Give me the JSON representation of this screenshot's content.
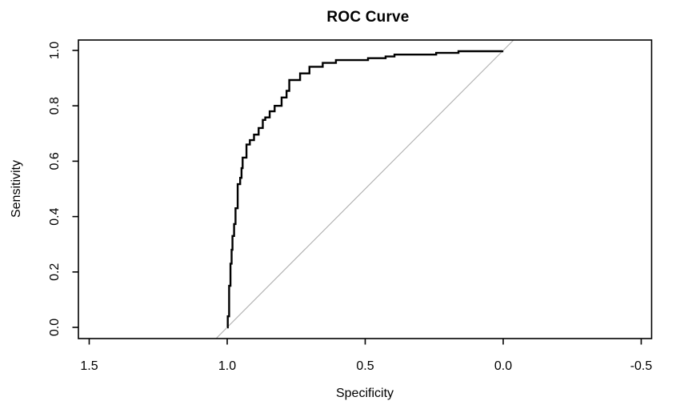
{
  "figure": {
    "background_color": "#ffffff",
    "text_color": "#000000"
  },
  "chart_data": {
    "type": "line",
    "subtype": "roc-step-curve",
    "title": "ROC Curve",
    "xlabel": "Specificity",
    "ylabel": "Sensitivity",
    "x_axis_reversed": true,
    "xlim": [
      1.5,
      -0.5
    ],
    "ylim": [
      0.0,
      1.0
    ],
    "grid": false,
    "legend": "none",
    "x_ticks": [
      {
        "value": 1.5,
        "label": "1.5"
      },
      {
        "value": 1.0,
        "label": "1.0"
      },
      {
        "value": 0.5,
        "label": "0.5"
      },
      {
        "value": 0.0,
        "label": "0.0"
      },
      {
        "value": -0.5,
        "label": "-0.5"
      }
    ],
    "y_ticks": [
      {
        "value": 0.0,
        "label": "0.0"
      },
      {
        "value": 0.2,
        "label": "0.2"
      },
      {
        "value": 0.4,
        "label": "0.4"
      },
      {
        "value": 0.6,
        "label": "0.6"
      },
      {
        "value": 0.8,
        "label": "0.8"
      },
      {
        "value": 1.0,
        "label": "1.0"
      }
    ],
    "series": [
      {
        "name": "ROC curve",
        "color": "#000000",
        "line_width": 2.4,
        "step": true,
        "points_format": [
          "specificity",
          "sensitivity"
        ],
        "points": [
          [
            1.0,
            0.0
          ],
          [
            0.998,
            0.04
          ],
          [
            0.993,
            0.15
          ],
          [
            0.988,
            0.23
          ],
          [
            0.984,
            0.28
          ],
          [
            0.981,
            0.33
          ],
          [
            0.975,
            0.373
          ],
          [
            0.97,
            0.43
          ],
          [
            0.962,
            0.517
          ],
          [
            0.953,
            0.54
          ],
          [
            0.948,
            0.575
          ],
          [
            0.944,
            0.613
          ],
          [
            0.93,
            0.66
          ],
          [
            0.918,
            0.676
          ],
          [
            0.903,
            0.696
          ],
          [
            0.886,
            0.72
          ],
          [
            0.871,
            0.749
          ],
          [
            0.862,
            0.758
          ],
          [
            0.846,
            0.78
          ],
          [
            0.828,
            0.8
          ],
          [
            0.803,
            0.83
          ],
          [
            0.785,
            0.854
          ],
          [
            0.775,
            0.893
          ],
          [
            0.736,
            0.917
          ],
          [
            0.702,
            0.941
          ],
          [
            0.654,
            0.955
          ],
          [
            0.606,
            0.965
          ],
          [
            0.49,
            0.972
          ],
          [
            0.426,
            0.978
          ],
          [
            0.394,
            0.985
          ],
          [
            0.243,
            0.991
          ],
          [
            0.162,
            0.997
          ],
          [
            0.003,
            1.0
          ]
        ]
      }
    ],
    "reference_line": {
      "name": "chance diagonal",
      "color": "#aeaeae",
      "line_width": 1.1,
      "from": [
        1.0,
        0.0
      ],
      "to": [
        0.0,
        1.0
      ],
      "extended_to_plot_edges": true
    },
    "axis_color": "#000000",
    "box_around_plot": true
  }
}
